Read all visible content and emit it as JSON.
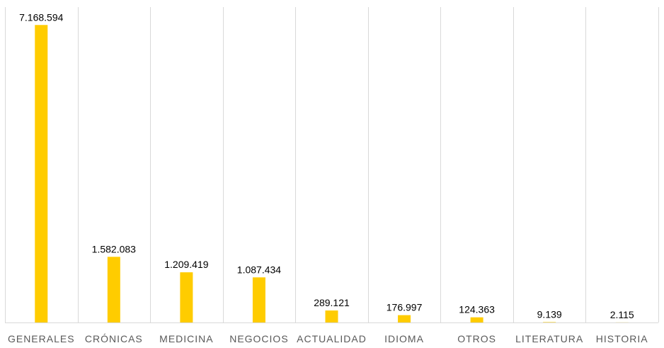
{
  "chart_data": {
    "type": "bar",
    "title": "",
    "xlabel": "",
    "ylabel": "",
    "categories": [
      "GENERALES",
      "CRÓNICAS",
      "MEDICINA",
      "NEGOCIOS",
      "ACTUALIDAD",
      "IDIOMA",
      "OTROS",
      "LITERATURA",
      "HISTORIA"
    ],
    "values": [
      7168594,
      1582083,
      1209419,
      1087434,
      289121,
      176997,
      124363,
      9139,
      2115
    ],
    "data_labels": [
      "7.168.594",
      "1.582.083",
      "1.209.419",
      "1.087.434",
      "289.121",
      "176.997",
      "124.363",
      "9.139",
      "2.115"
    ],
    "ylim": [
      0,
      7600000
    ],
    "grid": "vertical category separators",
    "legend": "none",
    "bar_color": "#ffcc00",
    "grid_color": "#d9d9d9",
    "label_color": "#595959"
  }
}
